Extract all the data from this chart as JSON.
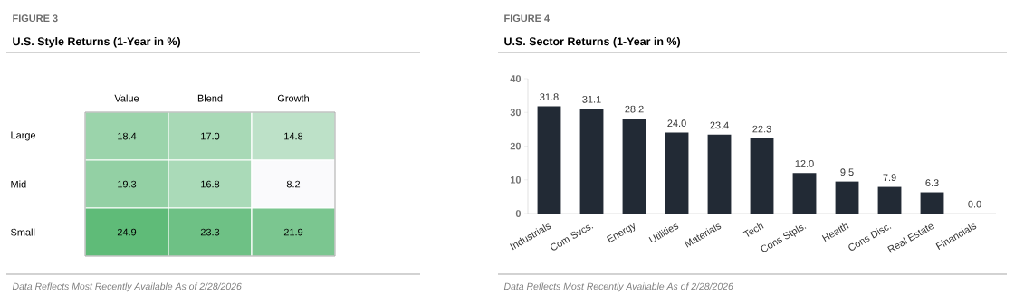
{
  "chart_data": [
    {
      "type": "heatmap",
      "title": "FIGURE 3",
      "subtitle": "U.S. Style Returns (1-Year in %)",
      "categories": [
        "Value",
        "Blend",
        "Growth"
      ],
      "y_categories": [
        "Large",
        "Mid",
        "Small"
      ],
      "cells": [
        [
          18.4,
          17.0,
          14.8
        ],
        [
          19.3,
          16.8,
          8.2
        ],
        [
          24.9,
          23.3,
          21.9
        ]
      ],
      "cell_labels": [
        [
          "18.4",
          "17.0",
          "14.8"
        ],
        [
          "19.3",
          "16.8",
          "8.2"
        ],
        [
          "24.9",
          "23.3",
          "21.9"
        ]
      ],
      "annotations": [
        "Data Reflects Most Recently Available As of 2/28/2026"
      ]
    },
    {
      "type": "bar",
      "title": "FIGURE 4",
      "subtitle": "U.S. Sector Returns (1-Year in %)",
      "categories": [
        "Industrials",
        "Com Svcs.",
        "Energy",
        "Utilities",
        "Materials",
        "Tech",
        "Cons Stpls.",
        "Health",
        "Cons Disc.",
        "Real Estate",
        "Financials"
      ],
      "values": [
        31.8,
        31.1,
        28.2,
        24.0,
        23.4,
        22.3,
        12.0,
        9.5,
        7.9,
        6.3,
        0.0
      ],
      "color": "#222a35",
      "ylim": [
        0,
        40
      ],
      "yticks": [
        0,
        10,
        20,
        30,
        40
      ],
      "value_labels": [
        "31.8",
        "31.1",
        "28.2",
        "24.0",
        "23.4",
        "22.3",
        "12.0",
        "9.5",
        "7.9",
        "6.3",
        "0.0"
      ],
      "annotations": [
        "Data Reflects Most Recently Available As of 2/28/2026"
      ]
    }
  ]
}
